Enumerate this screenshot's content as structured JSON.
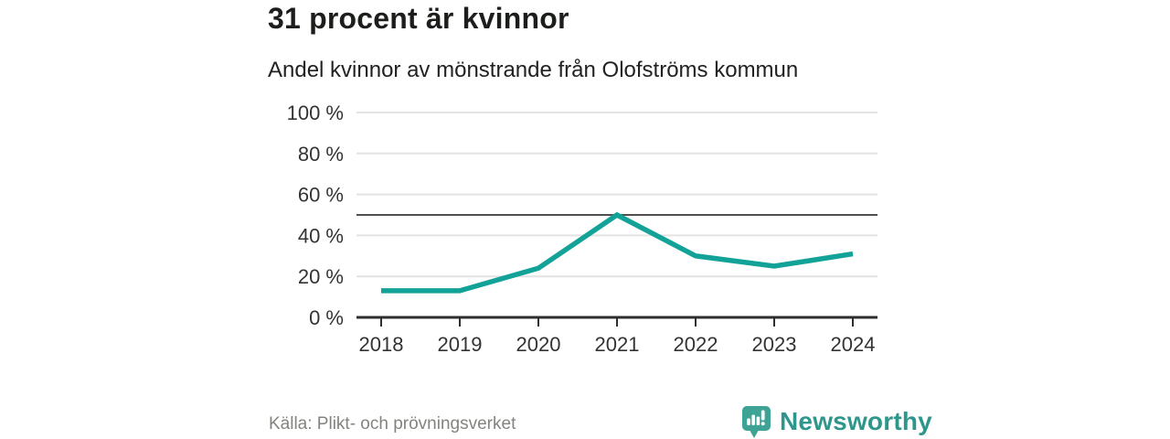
{
  "header": {
    "title": "31 procent är kvinnor",
    "subtitle": "Andel kvinnor av mönstrande från Olofströms kommun"
  },
  "chart_data": {
    "type": "line",
    "x": [
      "2018",
      "2019",
      "2020",
      "2021",
      "2022",
      "2023",
      "2024"
    ],
    "series": [
      {
        "name": "Andel kvinnor av mönstrande",
        "values": [
          13,
          13,
          24,
          50,
          30,
          25,
          31
        ]
      }
    ],
    "title": "31 procent är kvinnor",
    "subtitle": "Andel kvinnor av mönstrande från Olofströms kommun",
    "xlabel": "",
    "ylabel": "",
    "ylim": [
      0,
      100
    ],
    "yticks": [
      0,
      20,
      40,
      60,
      80,
      100
    ],
    "ytick_suffix": " %",
    "reference_line": 50,
    "grid": true,
    "legend": "none",
    "line_color": "#13a297",
    "grid_color": "#e3e3e3",
    "reference_line_color": "#4f4f4f",
    "axis_color": "#2e2e2e",
    "tick_label_color": "#333333"
  },
  "footer": {
    "source": "Källa: Plikt- och prövningsverket",
    "brand": "Newsworthy"
  },
  "colors": {
    "accent_teal": "#13a297",
    "logo_teal": "#3ea294",
    "wordmark_teal": "#2f968c",
    "title_text": "#1c1e1b",
    "muted_text": "#85837f"
  }
}
